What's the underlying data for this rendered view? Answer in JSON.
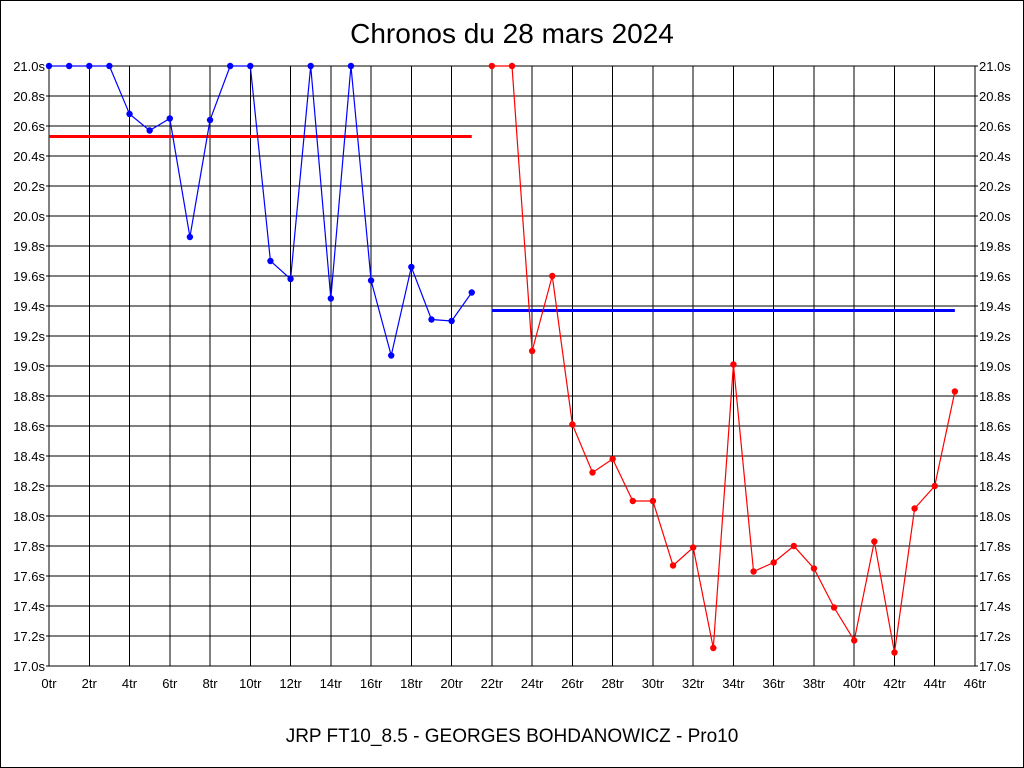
{
  "chart_data": {
    "type": "line",
    "title": "Chronos du 28 mars 2024",
    "footer": "JRP FT10_8.5 - GEORGES BOHDANOWICZ - Pro10",
    "xlim": [
      0,
      46
    ],
    "ylim": [
      17.0,
      21.0
    ],
    "x_ticks": [
      0,
      2,
      4,
      6,
      8,
      10,
      12,
      14,
      16,
      18,
      20,
      22,
      24,
      26,
      28,
      30,
      32,
      34,
      36,
      38,
      40,
      42,
      44,
      46
    ],
    "x_tick_labels": [
      "0tr",
      "2tr",
      "4tr",
      "6tr",
      "8tr",
      "10tr",
      "12tr",
      "14tr",
      "16tr",
      "18tr",
      "20tr",
      "22tr",
      "24tr",
      "26tr",
      "28tr",
      "30tr",
      "32tr",
      "34tr",
      "36tr",
      "38tr",
      "40tr",
      "42tr",
      "44tr",
      "46tr"
    ],
    "y_ticks": [
      21.0,
      20.8,
      20.6,
      20.4,
      20.2,
      20.0,
      19.8,
      19.6,
      19.4,
      19.2,
      19.0,
      18.8,
      18.6,
      18.4,
      18.2,
      18.0,
      17.8,
      17.6,
      17.4,
      17.2,
      17.0
    ],
    "y_tick_labels": [
      "21.0s",
      "20.8s",
      "20.6s",
      "20.4s",
      "20.2s",
      "20.0s",
      "19.8s",
      "19.6s",
      "19.4s",
      "19.2s",
      "19.0s",
      "18.8s",
      "18.6s",
      "18.4s",
      "18.2s",
      "18.0s",
      "17.8s",
      "17.6s",
      "17.4s",
      "17.2s",
      "17.0s"
    ],
    "grid": true,
    "series": [
      {
        "color": "#0000ff",
        "x": [
          0,
          1,
          2,
          3,
          4,
          5,
          6,
          7,
          8,
          9,
          10,
          11,
          12,
          13,
          14,
          15,
          16,
          17,
          18,
          19,
          20,
          21
        ],
        "values": [
          21.0,
          21.0,
          21.0,
          21.0,
          20.68,
          20.57,
          20.65,
          19.86,
          20.64,
          21.0,
          21.0,
          19.7,
          19.58,
          21.0,
          19.45,
          21.0,
          19.57,
          19.07,
          19.66,
          19.31,
          19.3,
          19.49
        ]
      },
      {
        "color": "#ff0000",
        "x": [
          22,
          23,
          24,
          25,
          26,
          27,
          28,
          29,
          30,
          31,
          32,
          33,
          34,
          35,
          36,
          37,
          38,
          39,
          40,
          41,
          42,
          43,
          44,
          45
        ],
        "values": [
          21.0,
          21.0,
          19.1,
          19.6,
          18.61,
          18.29,
          18.38,
          18.1,
          18.1,
          17.67,
          17.79,
          17.12,
          19.01,
          17.63,
          17.69,
          17.8,
          17.65,
          17.39,
          17.17,
          17.83,
          17.09,
          18.05,
          18.2,
          18.83
        ]
      }
    ],
    "averages": [
      {
        "color": "#ff0000",
        "x_from": 0,
        "x_to": 21,
        "value": 20.53
      },
      {
        "color": "#0000ff",
        "x_from": 22,
        "x_to": 45,
        "value": 19.37
      }
    ]
  }
}
